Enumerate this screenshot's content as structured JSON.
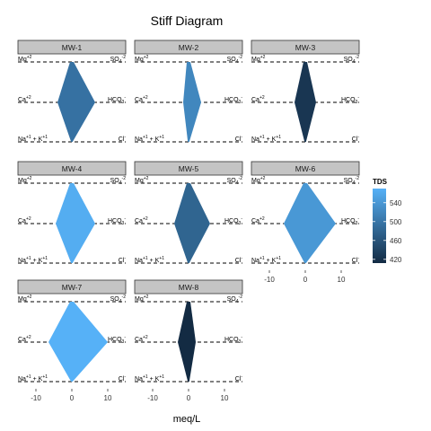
{
  "chart_data": {
    "type": "stiff",
    "title": "Stiff Diagram",
    "xlabel": "meq/L",
    "xlim": [
      -15,
      15
    ],
    "x_ticks": [
      "-10",
      "0",
      "10"
    ],
    "ions": {
      "left_top": "Mg",
      "left_top_sup": "+2",
      "left_mid": "Ca",
      "left_mid_sup": "+2",
      "left_bot_a": "Na",
      "left_bot_a_sup": "+1",
      "left_bot_b": "K",
      "left_bot_b_sup": "+1",
      "right_top": "SO",
      "right_top_sub": "4",
      "right_top_sup": "-2",
      "right_mid": "HCO",
      "right_mid_sub": "3",
      "right_mid_sup": "-",
      "right_bot": "Cl",
      "right_bot_sup": "-"
    },
    "legend": {
      "title": "TDS",
      "position": "right",
      "ticks": [
        "540",
        "500",
        "460",
        "420"
      ],
      "tick_values": [
        540,
        500,
        460,
        420
      ],
      "range": [
        412,
        570
      ],
      "color_low": "#132b43",
      "color_high": "#56b1f7"
    },
    "panels": [
      {
        "name": "MW-1",
        "tds": 495,
        "cations": [
          0.5,
          4.0,
          0.2
        ],
        "anions": [
          0.5,
          6.5,
          0.2
        ]
      },
      {
        "name": "MW-2",
        "tds": 520,
        "cations": [
          0.5,
          1.5,
          0.2
        ],
        "anions": [
          0.5,
          3.5,
          0.2
        ]
      },
      {
        "name": "MW-3",
        "tds": 425,
        "cations": [
          0.5,
          3.0,
          0.2
        ],
        "anions": [
          0.5,
          3.0,
          0.2
        ]
      },
      {
        "name": "MW-4",
        "tds": 565,
        "cations": [
          0.5,
          4.5,
          0.2
        ],
        "anions": [
          0.5,
          6.5,
          0.2
        ]
      },
      {
        "name": "MW-5",
        "tds": 480,
        "cations": [
          0.5,
          4.0,
          0.2
        ],
        "anions": [
          0.5,
          6.0,
          0.2
        ]
      },
      {
        "name": "MW-6",
        "tds": 540,
        "cations": [
          0.5,
          6.0,
          0.2
        ],
        "anions": [
          0.5,
          8.5,
          0.2
        ]
      },
      {
        "name": "MW-7",
        "tds": 570,
        "cations": [
          0.5,
          6.5,
          0.2
        ],
        "anions": [
          0.5,
          10.0,
          0.2
        ]
      },
      {
        "name": "MW-8",
        "tds": 412,
        "cations": [
          0.5,
          3.0,
          0.2
        ],
        "anions": [
          0.5,
          2.0,
          0.2
        ]
      }
    ]
  }
}
